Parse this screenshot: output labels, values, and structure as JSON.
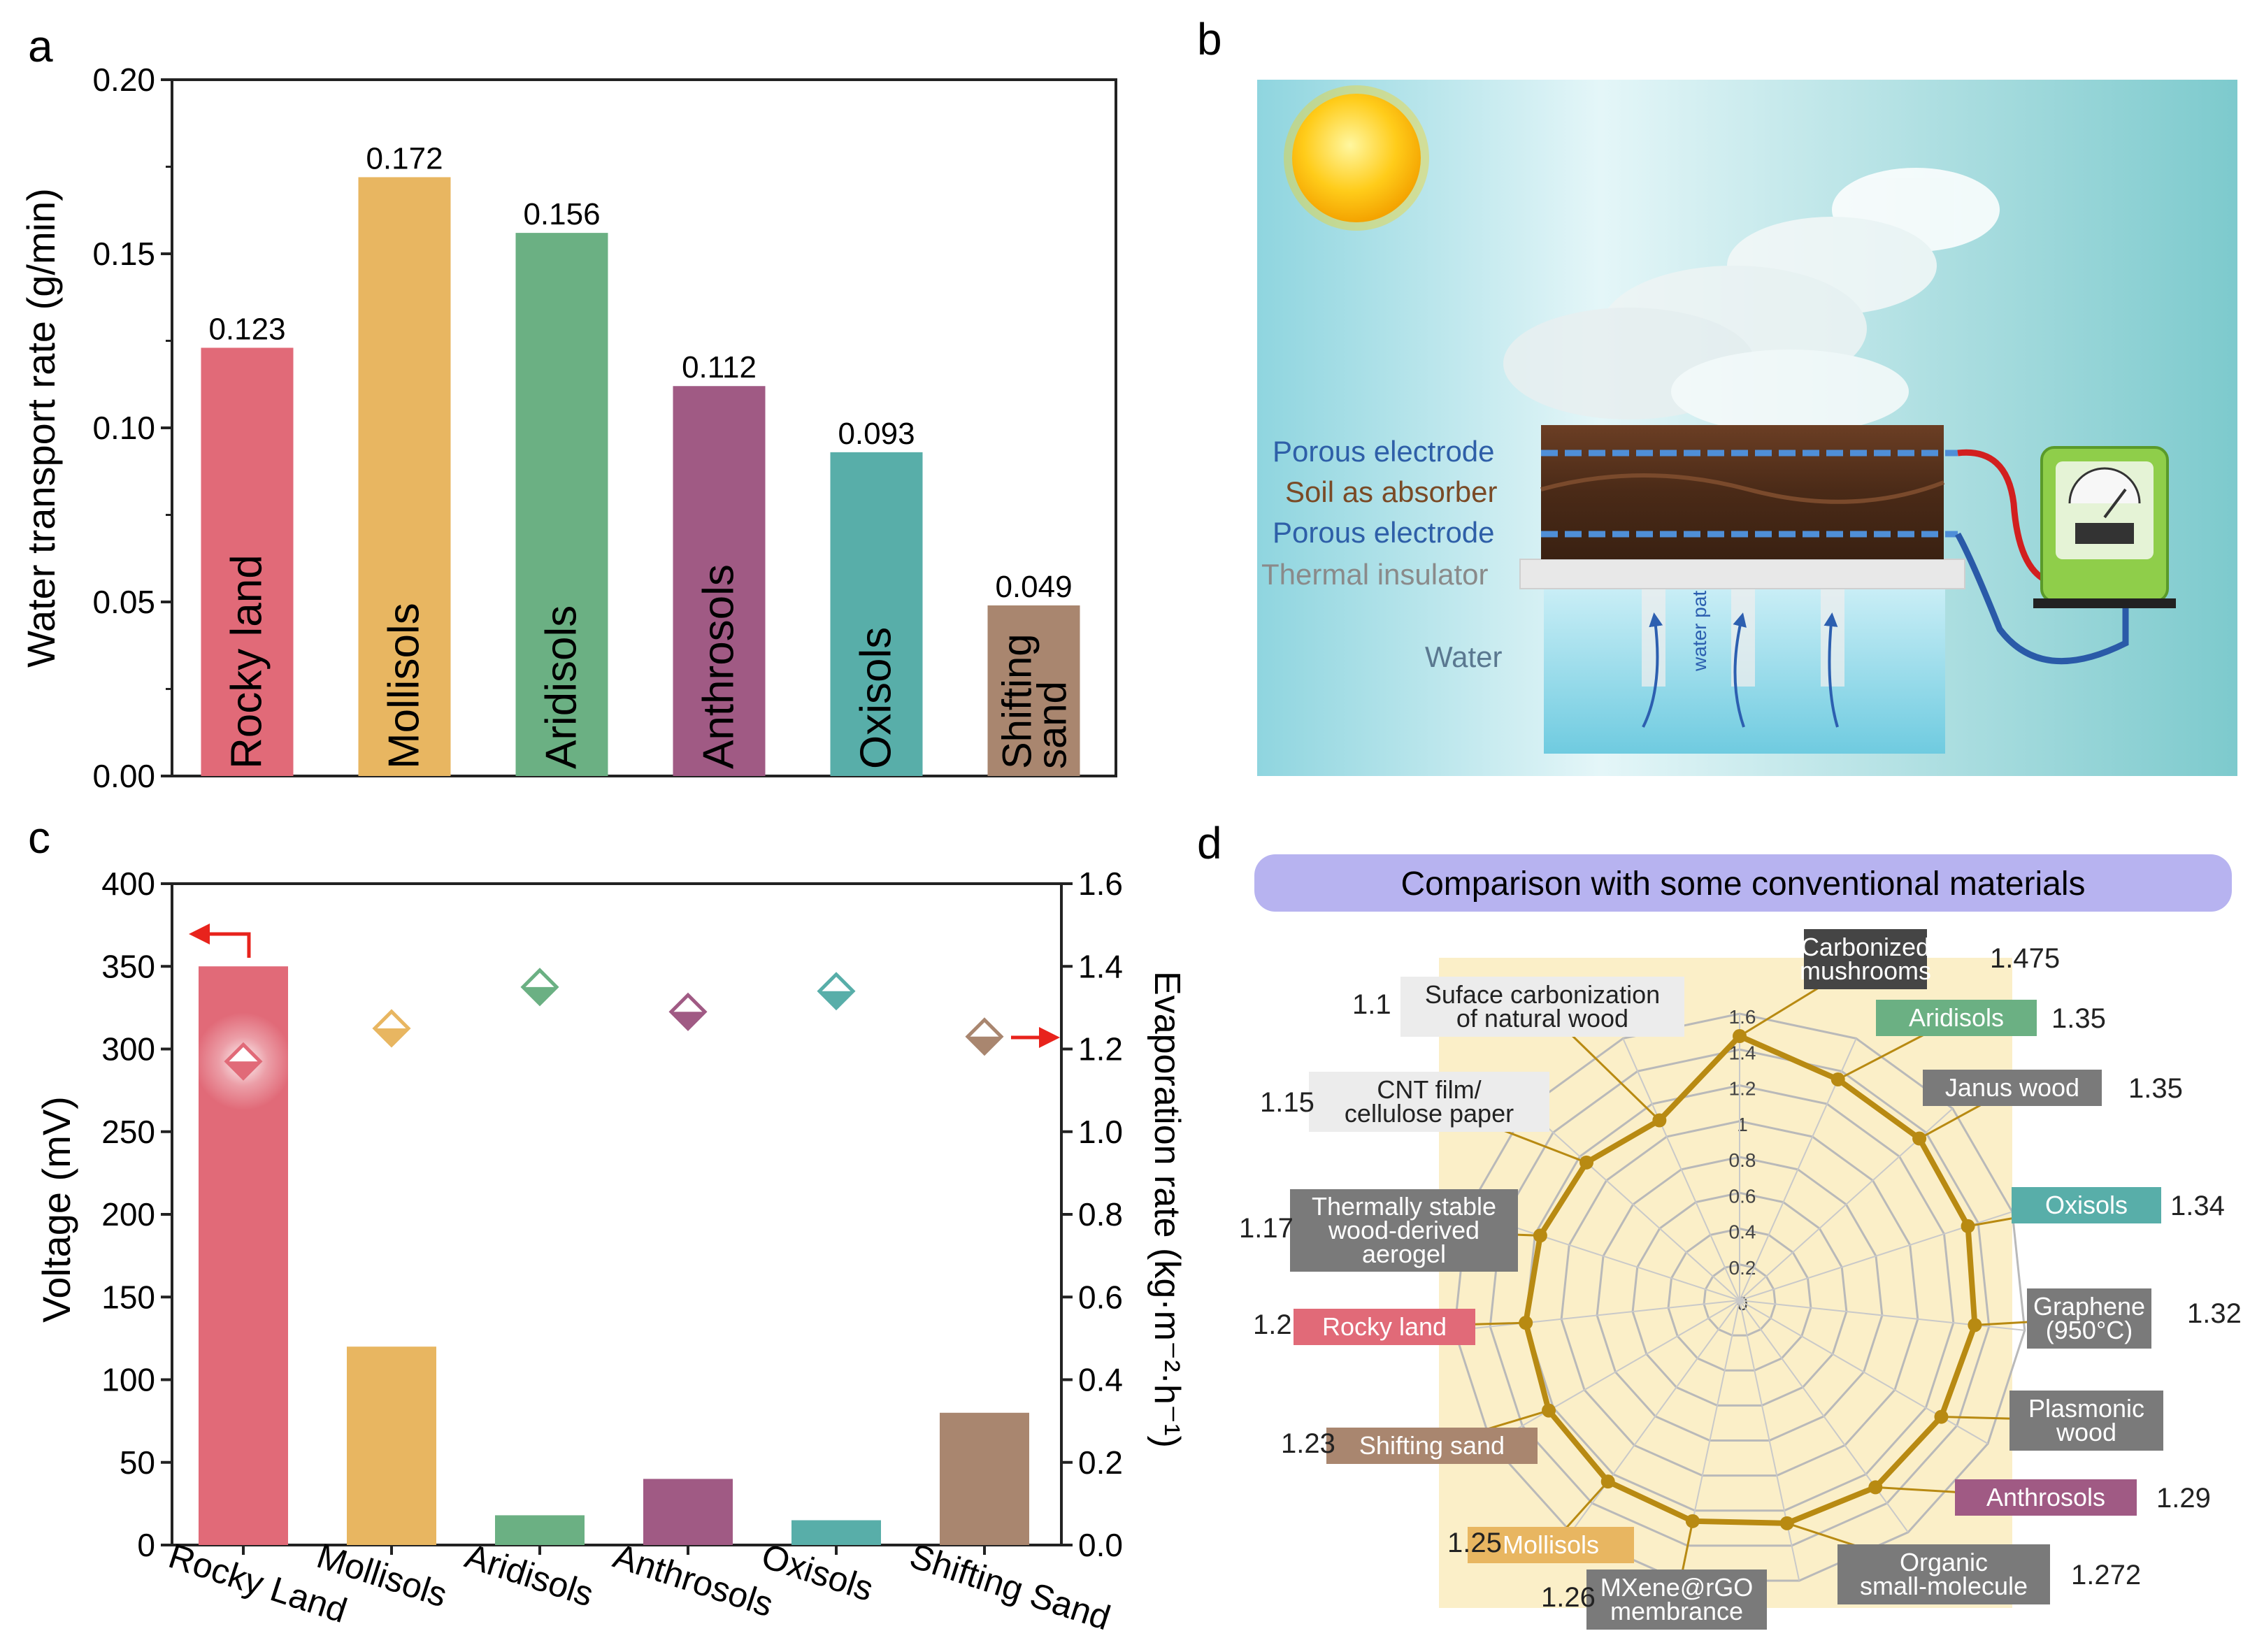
{
  "panels": {
    "a": "a",
    "b": "b",
    "c": "c",
    "d": "d"
  },
  "colors": {
    "rocky": "#e16a78",
    "mollisols": "#e8b661",
    "aridisols": "#6bb083",
    "anthrosols": "#a05a84",
    "oxisols": "#58aea9",
    "shifting": "#a9866f",
    "dark": "#4a4a4a",
    "gray": "#777777",
    "lightgray": "#ececec",
    "radar": "#b88a12"
  },
  "chart_data": [
    {
      "panel": "a",
      "type": "bar",
      "title": "",
      "xlabel": "",
      "ylabel": "Water transport rate (g/min)",
      "ylim": [
        0,
        0.2
      ],
      "yticks": [
        "0.00",
        "0.05",
        "0.10",
        "0.15",
        "0.20"
      ],
      "categories": [
        "Rocky land",
        "Mollisols",
        "Aridisols",
        "Anthrosols",
        "Oxisols",
        "Shifting sand"
      ],
      "values": [
        0.123,
        0.172,
        0.156,
        0.112,
        0.093,
        0.049
      ],
      "data_labels": [
        "0.123",
        "0.172",
        "0.156",
        "0.112",
        "0.093",
        "0.049"
      ],
      "bar_labels": [
        "Rocky land",
        "Mollisols",
        "Aridisols",
        "Anthrosols",
        "Oxisols",
        "Shifting"
      ],
      "bar_labels_2": [
        "",
        "",
        "",
        "",
        "",
        "sand"
      ]
    },
    {
      "panel": "c",
      "type": "bar",
      "ylabel": "Voltage (mV)",
      "y2label": "Evaporation rate (kg·m⁻²·h⁻¹)",
      "ylim": [
        0,
        400
      ],
      "y2lim": [
        0,
        1.6
      ],
      "yticks": [
        "0",
        "50",
        "100",
        "150",
        "200",
        "250",
        "300",
        "350",
        "400"
      ],
      "y2ticks": [
        "0.0",
        "0.2",
        "0.4",
        "0.6",
        "0.8",
        "1.0",
        "1.2",
        "1.4",
        "1.6"
      ],
      "categories": [
        "Rocky Land",
        "Mollisols",
        "Aridisols",
        "Anthrosols",
        "Oxisols",
        "Shifting Sand"
      ],
      "series": [
        {
          "name": "Voltage",
          "axis": "left",
          "type": "bar",
          "values": [
            350,
            120,
            18,
            40,
            15,
            80
          ]
        },
        {
          "name": "Evaporation rate",
          "axis": "right",
          "type": "scatter",
          "values": [
            1.17,
            1.25,
            1.35,
            1.29,
            1.34,
            1.23
          ]
        }
      ]
    },
    {
      "panel": "d",
      "type": "radar",
      "title": "Comparison with some conventional materials",
      "rlim": [
        0,
        1.6
      ],
      "rticks": [
        "0",
        "0.2",
        "0.4",
        "0.6",
        "0.8",
        "1",
        "1.2",
        "1.4",
        "1.6"
      ],
      "items": [
        {
          "label": "Carbonized mushrooms",
          "value": 1.475,
          "value_label": "1.475",
          "style": "dark"
        },
        {
          "label": "Aridisols",
          "value": 1.35,
          "value_label": "1.35",
          "style": "aridisols"
        },
        {
          "label": "Janus wood",
          "value": 1.35,
          "value_label": "1.35",
          "style": "gray"
        },
        {
          "label": "Oxisols",
          "value": 1.34,
          "value_label": "1.34",
          "style": "oxisols"
        },
        {
          "label": "Graphene (950°C)",
          "value": 1.32,
          "value_label": "1.32",
          "style": "gray"
        },
        {
          "label": "Plasmonic wood",
          "value": 1.3,
          "value_label": "",
          "style": "gray"
        },
        {
          "label": "Anthrosols",
          "value": 1.29,
          "value_label": "1.29",
          "style": "anthrosols"
        },
        {
          "label": "Organic small-molecule",
          "value": 1.272,
          "value_label": "1.272",
          "style": "gray"
        },
        {
          "label": "MXene@rGO membrance",
          "value": 1.26,
          "value_label": "1.26",
          "style": "gray"
        },
        {
          "label": "Mollisols",
          "value": 1.25,
          "value_label": "1.25",
          "style": "mollisols"
        },
        {
          "label": "Shifting sand",
          "value": 1.23,
          "value_label": "1.23",
          "style": "shifting"
        },
        {
          "label": "Rocky land",
          "value": 1.2,
          "value_label": "1.2",
          "style": "rocky"
        },
        {
          "label": "Thermally stable wood-derived aerogel",
          "value": 1.17,
          "value_label": "1.17",
          "style": "gray"
        },
        {
          "label": "CNT film/ cellulose paper",
          "value": 1.15,
          "value_label": "1.15",
          "style": "light"
        },
        {
          "label": "Suface carbonization of natural wood",
          "value": 1.1,
          "value_label": "1.1",
          "style": "light"
        }
      ]
    }
  ],
  "diagram_b": {
    "labels": {
      "porous_top": "Porous electrode",
      "soil": "Soil as absorber",
      "porous_bottom": "Porous electrode",
      "insulator": "Thermal insulator",
      "water": "Water",
      "water_path": "water path"
    }
  }
}
